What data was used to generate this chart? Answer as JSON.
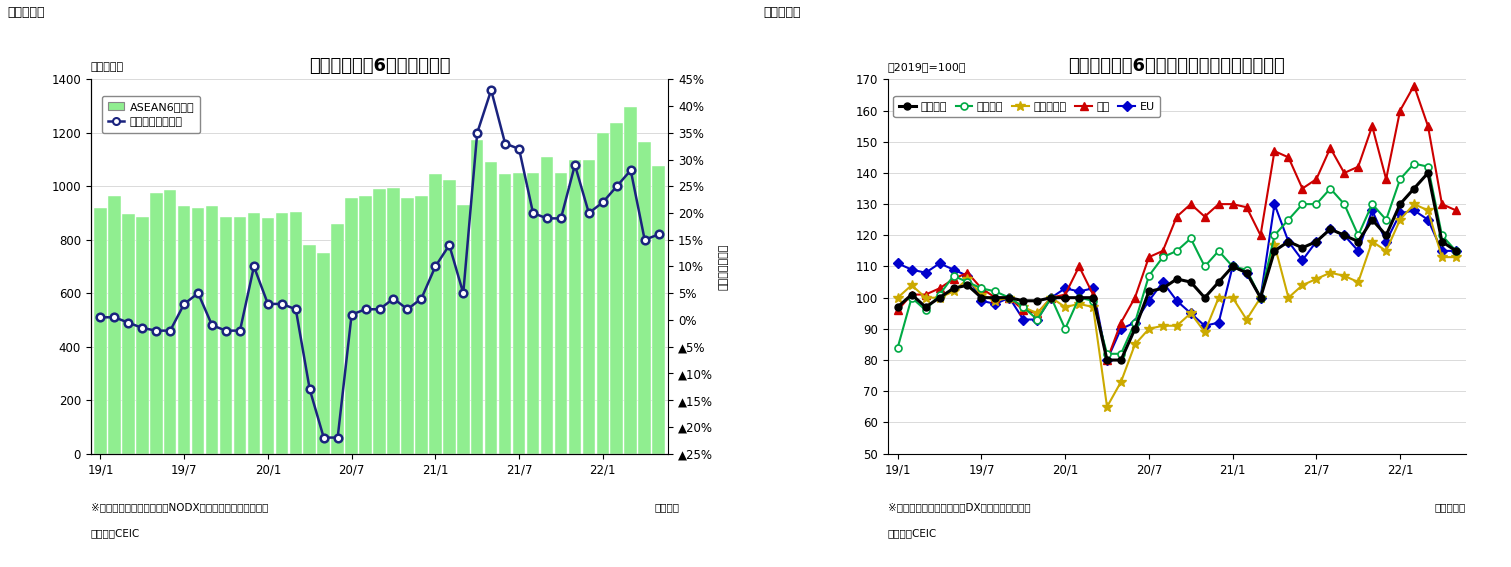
{
  "fig1": {
    "title": "アセアン主要6カ国の輸出額",
    "ylabel_left": "（億ドル）",
    "ylabel_right": "（前年同月比）",
    "xlabel_note": "（年月）",
    "footnote1": "※シンガポールの輸出額はNODX（石油と再輸出除く）。",
    "footnote2": "（資料）CEIC",
    "header": "（図表１）",
    "legend_bar": "ASEAN6カ国計",
    "legend_line": "増加率（右目盛）",
    "bar_color": "#90EE90",
    "bar_edge_color": "#70CC70",
    "line_color": "#1a237e",
    "x_labels": [
      "19/1",
      "19/7",
      "20/1",
      "20/7",
      "21/1",
      "21/7",
      "22/1"
    ],
    "bar_values": [
      920,
      965,
      895,
      885,
      975,
      985,
      925,
      920,
      925,
      885,
      885,
      900,
      880,
      900,
      905,
      780,
      750,
      860,
      955,
      965,
      990,
      995,
      955,
      965,
      1045,
      1025,
      930,
      1175,
      1090,
      1045,
      1050,
      1050,
      1110,
      1050,
      1100,
      1100,
      1200,
      1235,
      1295,
      1165,
      1075
    ],
    "line_values": [
      0.5,
      0.5,
      -0.5,
      -1.5,
      -2,
      -2,
      3,
      5,
      -1,
      -2,
      -2,
      10,
      3,
      3,
      2,
      -13,
      -22,
      -22,
      1,
      2,
      2,
      4,
      2,
      4,
      10,
      14,
      5,
      35,
      43,
      33,
      32,
      20,
      19,
      19,
      29,
      20,
      22,
      25,
      28,
      15,
      16
    ],
    "ylim_left": [
      0,
      1400
    ],
    "ylim_right": [
      -25,
      45
    ],
    "yticks_left": [
      0,
      200,
      400,
      600,
      800,
      1000,
      1200,
      1400
    ],
    "yticks_right": [
      45,
      40,
      35,
      30,
      25,
      20,
      15,
      10,
      5,
      0,
      -5,
      -10,
      -15,
      -20,
      -25
    ],
    "ytick_right_labels": [
      "45%",
      "40%",
      "35%",
      "30%",
      "25%",
      "20%",
      "15%",
      "10%",
      "5%",
      "0%",
      "■5%",
      "■10%",
      "■15%",
      "■20%",
      "■25%"
    ]
  },
  "fig2": {
    "title": "アセアン主要6カ国　仕向け地別の輸出動向",
    "ylabel_left": "（2019年=100）",
    "xlabel_note": "（年／月）",
    "footnote1": "※シンガポールの輸出額はDX（再輸出除く）。",
    "footnote2": "（資料）CEIC",
    "header": "（図表２）",
    "legend_entries": [
      "輸出全体",
      "東アジア",
      "東南アジア",
      "北米",
      "EU"
    ],
    "line_colors": [
      "#000000",
      "#00aa44",
      "#ccaa00",
      "#cc0000",
      "#0000cc"
    ],
    "ylim": [
      50,
      170
    ],
    "yticks": [
      50,
      60,
      70,
      80,
      90,
      100,
      110,
      120,
      130,
      140,
      150,
      160,
      170
    ],
    "x_labels": [
      "19/1",
      "19/7",
      "20/1",
      "20/7",
      "21/1",
      "21/7",
      "22/1"
    ],
    "series": {
      "輸出全体": [
        97,
        101,
        97,
        100,
        103,
        104,
        100,
        100,
        100,
        99,
        99,
        100,
        100,
        100,
        100,
        80,
        80,
        90,
        102,
        103,
        106,
        105,
        100,
        105,
        110,
        108,
        100,
        115,
        118,
        116,
        118,
        122,
        120,
        118,
        125,
        120,
        130,
        135,
        140,
        118,
        115
      ],
      "東アジア": [
        84,
        100,
        96,
        101,
        107,
        105,
        103,
        102,
        100,
        97,
        93,
        100,
        90,
        100,
        99,
        82,
        82,
        92,
        107,
        113,
        115,
        119,
        110,
        115,
        110,
        109,
        100,
        120,
        125,
        130,
        130,
        135,
        130,
        120,
        130,
        125,
        138,
        143,
        142,
        120,
        115
      ],
      "東南アジア": [
        100,
        104,
        100,
        100,
        102,
        106,
        101,
        99,
        100,
        97,
        95,
        100,
        97,
        98,
        97,
        65,
        73,
        85,
        90,
        91,
        91,
        95,
        89,
        100,
        100,
        93,
        100,
        117,
        100,
        104,
        106,
        108,
        107,
        105,
        118,
        115,
        125,
        130,
        128,
        113,
        113
      ],
      "北米": [
        96,
        101,
        101,
        103,
        106,
        108,
        103,
        100,
        100,
        96,
        95,
        100,
        101,
        110,
        101,
        80,
        92,
        100,
        113,
        115,
        126,
        130,
        126,
        130,
        130,
        129,
        120,
        147,
        145,
        135,
        138,
        148,
        140,
        142,
        155,
        138,
        160,
        168,
        155,
        130,
        128
      ],
      "EU": [
        111,
        109,
        108,
        111,
        109,
        107,
        99,
        98,
        100,
        93,
        93,
        100,
        103,
        102,
        103,
        80,
        90,
        92,
        99,
        105,
        99,
        95,
        91,
        92,
        110,
        108,
        100,
        130,
        118,
        112,
        118,
        122,
        120,
        115,
        128,
        118,
        127,
        128,
        125,
        115,
        115
      ]
    }
  }
}
